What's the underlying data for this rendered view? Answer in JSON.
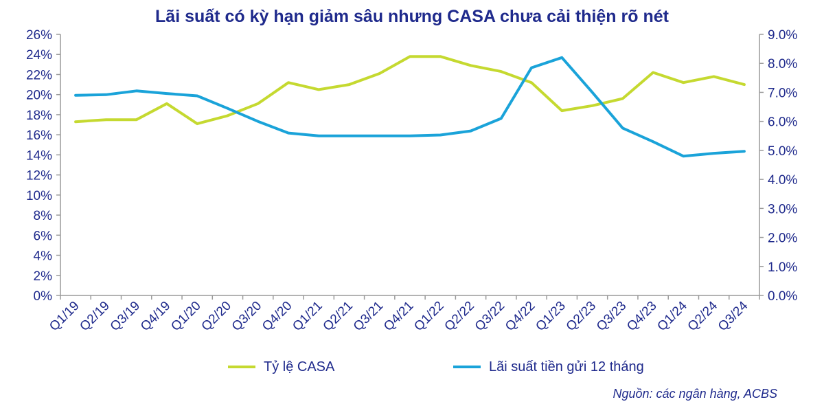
{
  "chart_data": {
    "type": "line",
    "title": "Lãi suất có kỳ hạn giảm sâu nhưng CASA chưa cải thiện rõ nét",
    "source": "Nguồn: các ngân hàng, ACBS",
    "categories": [
      "Q1/19",
      "Q2/19",
      "Q3/19",
      "Q4/19",
      "Q1/20",
      "Q2/20",
      "Q3/20",
      "Q4/20",
      "Q1/21",
      "Q2/21",
      "Q3/21",
      "Q4/21",
      "Q1/22",
      "Q2/22",
      "Q3/22",
      "Q4/22",
      "Q1/23",
      "Q2/23",
      "Q3/23",
      "Q4/23",
      "Q1/24",
      "Q2/24",
      "Q3/24"
    ],
    "y_left": {
      "min": 0,
      "max": 26,
      "step": 2,
      "suffix": "%",
      "ticks": [
        "0%",
        "2%",
        "4%",
        "6%",
        "8%",
        "10%",
        "12%",
        "14%",
        "16%",
        "18%",
        "20%",
        "22%",
        "24%",
        "26%"
      ]
    },
    "y_right": {
      "min": 0,
      "max": 9,
      "step": 1,
      "suffix": "%",
      "ticks": [
        "0.0%",
        "1.0%",
        "2.0%",
        "3.0%",
        "4.0%",
        "5.0%",
        "6.0%",
        "7.0%",
        "8.0%",
        "9.0%"
      ]
    },
    "grid": false,
    "legend_position": "bottom",
    "series": [
      {
        "name": "Tỷ lệ CASA",
        "axis": "left",
        "color": "#c5d930",
        "values": [
          17.3,
          17.5,
          17.5,
          19.1,
          17.1,
          17.9,
          19.1,
          21.2,
          20.5,
          21.0,
          22.1,
          23.8,
          23.8,
          22.9,
          22.3,
          21.2,
          18.4,
          18.9,
          19.6,
          22.2,
          21.2,
          21.8,
          21.0
        ]
      },
      {
        "name": "Lãi suất tiền gửi 12 tháng",
        "axis": "right",
        "color": "#1aa3d9",
        "values": [
          6.9,
          6.92,
          7.05,
          6.96,
          6.88,
          6.45,
          6.0,
          5.6,
          5.5,
          5.5,
          5.5,
          5.5,
          5.53,
          5.67,
          6.1,
          7.85,
          8.2,
          7.0,
          5.77,
          5.3,
          4.8,
          4.9,
          4.97
        ]
      }
    ]
  }
}
